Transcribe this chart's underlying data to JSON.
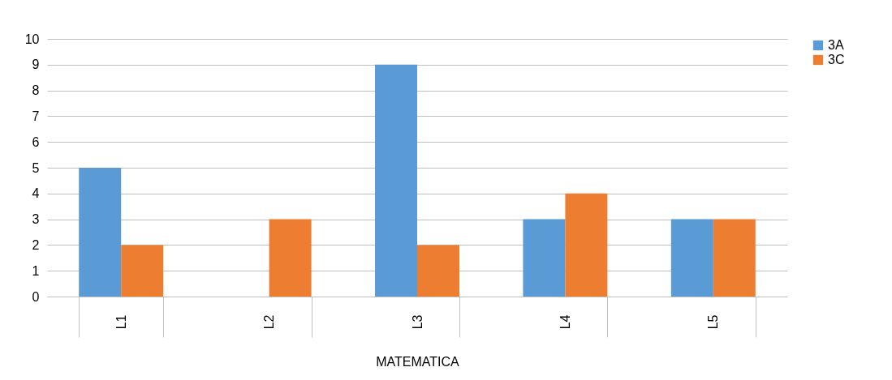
{
  "chart_data": {
    "type": "bar",
    "xlabel": "MATEMATICA",
    "categories": [
      "L1",
      "L2",
      "L3",
      "L4",
      "L5"
    ],
    "series": [
      {
        "name": "3A",
        "color": "#5b9bd5",
        "values": [
          5,
          0,
          9,
          3,
          3
        ]
      },
      {
        "name": "3C",
        "color": "#ed7d31",
        "values": [
          2,
          3,
          2,
          4,
          3
        ]
      }
    ],
    "ylim": [
      0,
      10
    ],
    "yticks": [
      0,
      1,
      2,
      3,
      4,
      5,
      6,
      7,
      8,
      9,
      10
    ],
    "grid": "y",
    "legend": "right"
  }
}
